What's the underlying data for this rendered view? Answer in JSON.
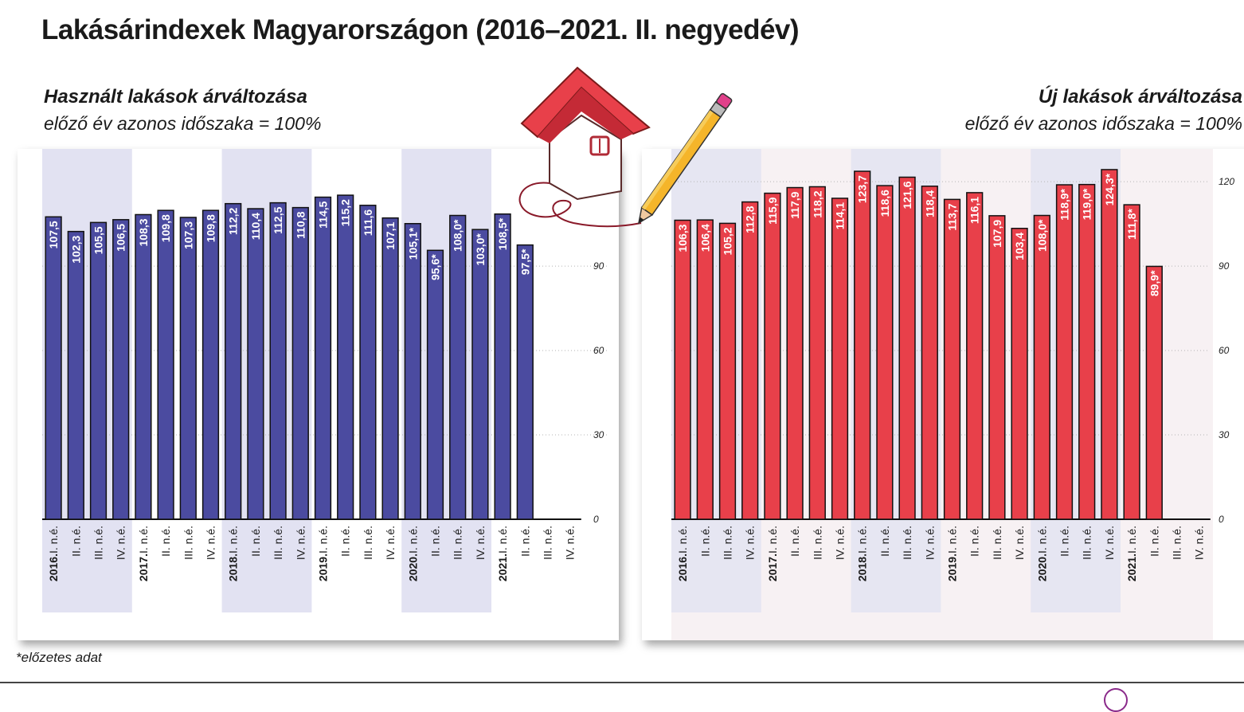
{
  "title": "Lakásárindexek Magyarországon (2016–2021. II. negyedév)",
  "footnote": "*előzetes adat",
  "left_panel": {
    "subtitle": "Használt lakások árváltozása",
    "basis": "előző év azonos időszaka = 100%"
  },
  "right_panel": {
    "subtitle": "Új lakások árváltozása",
    "basis": "előző év azonos időszaka = 100%"
  },
  "colors": {
    "used": "#4b4ba0",
    "new": "#e8404a",
    "band_used": "#e2e2f2",
    "band_new": "#e6e6f2",
    "bg_new": "#f7f1f3"
  },
  "chart_data": [
    {
      "type": "bar",
      "series_key": "used",
      "categories": [
        {
          "year": "2016.",
          "q": "I. n.é."
        },
        {
          "year": "",
          "q": "II. n.é."
        },
        {
          "year": "",
          "q": "III. n.é."
        },
        {
          "year": "",
          "q": "IV. n.é."
        },
        {
          "year": "2017.",
          "q": "I. n.é."
        },
        {
          "year": "",
          "q": "II. n.é."
        },
        {
          "year": "",
          "q": "III. n.é."
        },
        {
          "year": "",
          "q": "IV. n.é."
        },
        {
          "year": "2018.",
          "q": "I. n.é."
        },
        {
          "year": "",
          "q": "II. n.é."
        },
        {
          "year": "",
          "q": "III. n.é."
        },
        {
          "year": "",
          "q": "IV. n.é."
        },
        {
          "year": "2019.",
          "q": "I. n.é."
        },
        {
          "year": "",
          "q": "II. n.é."
        },
        {
          "year": "",
          "q": "III. n.é."
        },
        {
          "year": "",
          "q": "IV. n.é."
        },
        {
          "year": "2020.",
          "q": "I. n.é."
        },
        {
          "year": "",
          "q": "II. n.é."
        },
        {
          "year": "",
          "q": "III. n.é."
        },
        {
          "year": "",
          "q": "IV. n.é."
        },
        {
          "year": "2021.",
          "q": "I. n.é."
        },
        {
          "year": "",
          "q": "II. n.é."
        },
        {
          "year": "",
          "q": "III. n.é."
        },
        {
          "year": "",
          "q": "IV. n.é."
        }
      ],
      "values": [
        107.5,
        102.3,
        105.5,
        106.5,
        108.3,
        109.8,
        107.3,
        109.8,
        112.2,
        110.4,
        112.5,
        110.8,
        114.5,
        115.2,
        111.6,
        107.1,
        105.1,
        95.6,
        108.0,
        103.0,
        108.5,
        97.5,
        null,
        null
      ],
      "labels": [
        "107,5",
        "102,3",
        "105,5",
        "106,5",
        "108,3",
        "109,8",
        "107,3",
        "109,8",
        "112,2",
        "110,4",
        "112,5",
        "110,8",
        "114,5",
        "115,2",
        "111,6",
        "107,1",
        "105,1*",
        "95,6*",
        "108,0*",
        "103,0*",
        "108,5*",
        "97,5*",
        "",
        ""
      ],
      "yticks": [
        "0",
        "30",
        "60",
        "90"
      ],
      "ylim": [
        0,
        124
      ]
    },
    {
      "type": "bar",
      "series_key": "new",
      "categories": [
        {
          "year": "2016.",
          "q": "I. n.é."
        },
        {
          "year": "",
          "q": "II. n.é."
        },
        {
          "year": "",
          "q": "III. n.é."
        },
        {
          "year": "",
          "q": "IV. n.é."
        },
        {
          "year": "2017.",
          "q": "I. n.é."
        },
        {
          "year": "",
          "q": "II. n.é."
        },
        {
          "year": "",
          "q": "III. n.é."
        },
        {
          "year": "",
          "q": "IV. n.é."
        },
        {
          "year": "2018.",
          "q": "I. n.é."
        },
        {
          "year": "",
          "q": "II. n.é."
        },
        {
          "year": "",
          "q": "III. n.é."
        },
        {
          "year": "",
          "q": "IV. n.é."
        },
        {
          "year": "2019.",
          "q": "I. n.é."
        },
        {
          "year": "",
          "q": "II. n.é."
        },
        {
          "year": "",
          "q": "III. n.é."
        },
        {
          "year": "",
          "q": "IV. n.é."
        },
        {
          "year": "2020.",
          "q": "I. n.é."
        },
        {
          "year": "",
          "q": "II. n.é."
        },
        {
          "year": "",
          "q": "III. n.é."
        },
        {
          "year": "",
          "q": "IV. n.é."
        },
        {
          "year": "2021.",
          "q": "I. n.é."
        },
        {
          "year": "",
          "q": "II. n.é."
        },
        {
          "year": "",
          "q": "III. n.é."
        },
        {
          "year": "",
          "q": "IV. n.é."
        }
      ],
      "values": [
        106.3,
        106.4,
        105.2,
        112.8,
        115.9,
        117.9,
        118.2,
        114.1,
        123.7,
        118.6,
        121.6,
        118.4,
        113.7,
        116.1,
        107.9,
        103.4,
        108.0,
        118.9,
        119.0,
        124.3,
        111.8,
        89.9,
        null,
        null
      ],
      "labels": [
        "106,3",
        "106,4",
        "105,2",
        "112,8",
        "115,9",
        "117,9",
        "118,2",
        "114,1",
        "123,7",
        "118,6",
        "121,6",
        "118,4",
        "113,7",
        "116,1",
        "107,9",
        "103,4",
        "108,0*",
        "118,9*",
        "119,0*",
        "124,3*",
        "111,8*",
        "89,9*",
        "",
        ""
      ],
      "yticks": [
        "0",
        "30",
        "60",
        "90",
        "120"
      ],
      "ylim": [
        0,
        124
      ]
    }
  ]
}
